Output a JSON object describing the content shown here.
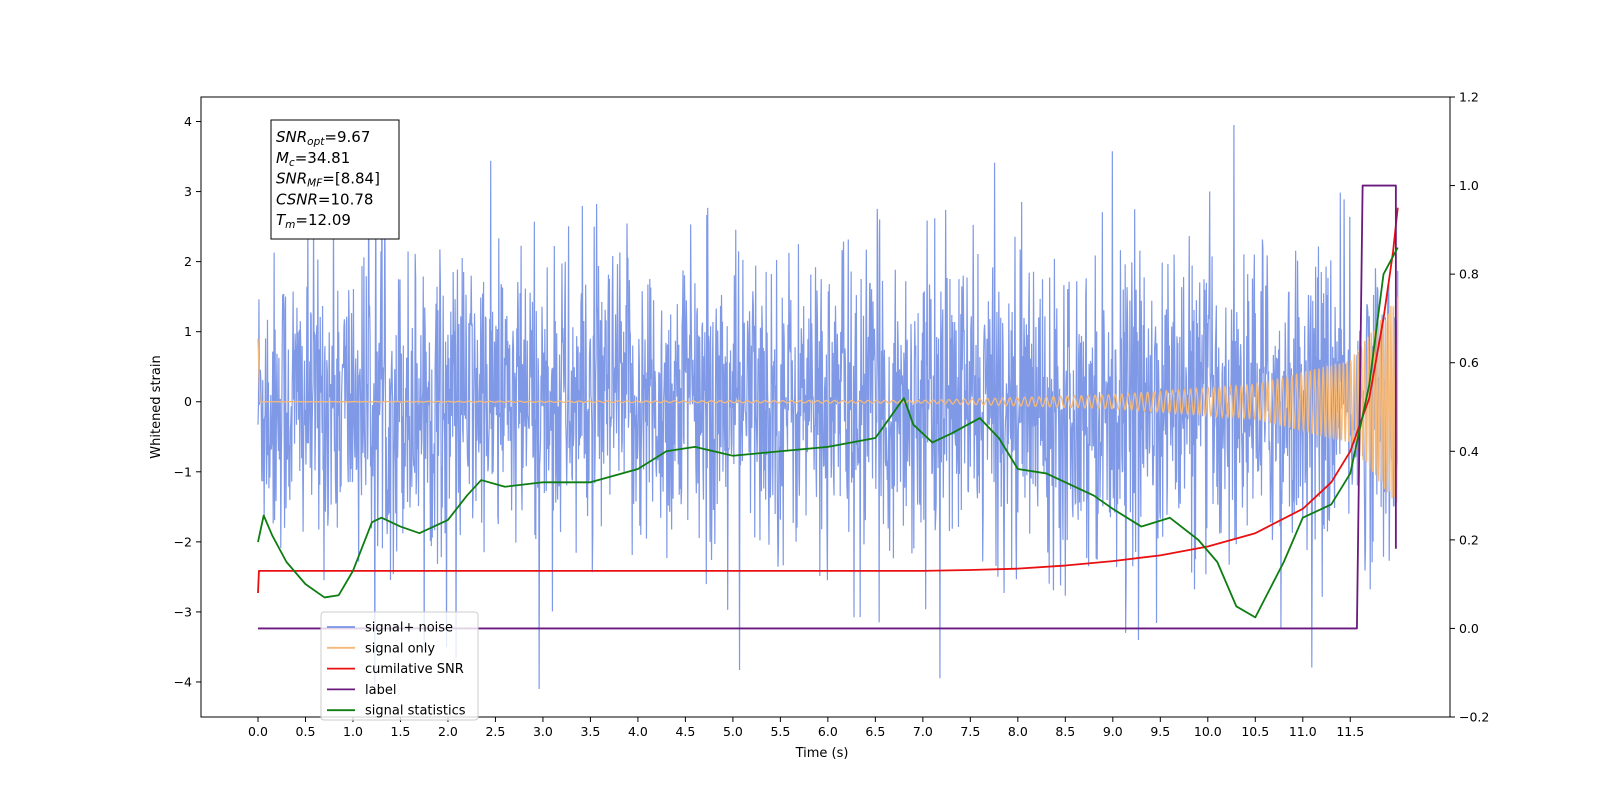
{
  "chart_data": {
    "type": "line",
    "xlabel": "Time (s)",
    "ylabel": "Whitened strain",
    "xlim": [
      -0.6,
      12.55
    ],
    "ylim_left": [
      -4.5,
      4.35
    ],
    "ylim_right": [
      -0.2,
      1.2
    ],
    "x_ticks": [
      0.0,
      0.5,
      1.0,
      1.5,
      2.0,
      2.5,
      3.0,
      3.5,
      4.0,
      4.5,
      5.0,
      5.5,
      6.0,
      6.5,
      7.0,
      7.5,
      8.0,
      8.5,
      9.0,
      9.5,
      10.0,
      10.5,
      11.0,
      11.5
    ],
    "x_tick_labels": [
      "0.0",
      "0.5",
      "1.0",
      "1.5",
      "2.0",
      "2.5",
      "3.0",
      "3.5",
      "4.0",
      "4.5",
      "5.0",
      "5.5",
      "6.0",
      "6.5",
      "7.0",
      "7.5",
      "8.0",
      "8.5",
      "9.0",
      "9.5",
      "10.0",
      "10.5",
      "11.0",
      "11.5"
    ],
    "y_ticks_left": [
      -4,
      -3,
      -2,
      -1,
      0,
      1,
      2,
      3,
      4
    ],
    "y_tick_labels_left": [
      "−4",
      "−3",
      "−2",
      "−1",
      "0",
      "1",
      "2",
      "3",
      "4"
    ],
    "y_ticks_right": [
      -0.2,
      0.0,
      0.2,
      0.4,
      0.6,
      0.8,
      1.0,
      1.2
    ],
    "y_tick_labels_right": [
      "−0.2",
      "0.0",
      "0.2",
      "0.4",
      "0.6",
      "0.8",
      "1.0",
      "1.2"
    ],
    "grid": false,
    "legend_position": "bottom-left",
    "annotation": {
      "lines": [
        {
          "sym": "SNR",
          "sub": "opt",
          "value": "=9.67"
        },
        {
          "sym": "M",
          "sub": "c",
          "value": "=34.81"
        },
        {
          "sym": "SNR",
          "sub": "MF",
          "value": "=[8.84]"
        },
        {
          "sym": "CSNR",
          "sub": "",
          "value": "=10.78"
        },
        {
          "sym": "T",
          "sub": "m",
          "value": "=12.09"
        }
      ]
    },
    "series": [
      {
        "name": "signal+ noise",
        "axis": "left",
        "color": "#7893e6",
        "kind": "noise",
        "t_start": 0.0,
        "t_end": 12.0,
        "typical_range": [
          -2.6,
          2.6
        ],
        "max": 3.95,
        "min": -4.1
      },
      {
        "name": "signal only",
        "axis": "left",
        "color": "#f5b97a",
        "kind": "chirp",
        "t_start": 0.0,
        "t_end": 12.0,
        "amplitude_points": [
          [
            0.0,
            0.0
          ],
          [
            7.0,
            0.02
          ],
          [
            9.0,
            0.1
          ],
          [
            10.5,
            0.25
          ],
          [
            11.5,
            0.6
          ],
          [
            12.0,
            1.5
          ]
        ]
      },
      {
        "name": "cumilative SNR",
        "axis": "right",
        "color": "#e81010",
        "points": [
          [
            0.0,
            0.08
          ],
          [
            0.01,
            0.13
          ],
          [
            1.0,
            0.13
          ],
          [
            3.0,
            0.13
          ],
          [
            5.0,
            0.13
          ],
          [
            7.0,
            0.13
          ],
          [
            7.5,
            0.132
          ],
          [
            8.0,
            0.135
          ],
          [
            8.5,
            0.142
          ],
          [
            9.0,
            0.152
          ],
          [
            9.5,
            0.165
          ],
          [
            10.0,
            0.185
          ],
          [
            10.5,
            0.215
          ],
          [
            11.0,
            0.27
          ],
          [
            11.3,
            0.33
          ],
          [
            11.5,
            0.4
          ],
          [
            11.7,
            0.52
          ],
          [
            11.85,
            0.7
          ],
          [
            11.95,
            0.85
          ],
          [
            12.0,
            0.95
          ]
        ]
      },
      {
        "name": "label",
        "axis": "right",
        "color": "#6a1a7f",
        "points": [
          [
            0.0,
            0.0
          ],
          [
            11.57,
            0.0
          ],
          [
            11.63,
            1.0
          ],
          [
            11.98,
            1.0
          ],
          [
            11.98,
            0.18
          ]
        ]
      },
      {
        "name": "signal statistics",
        "axis": "right",
        "color": "#0e7d12",
        "points": [
          [
            0.0,
            0.195
          ],
          [
            0.06,
            0.255
          ],
          [
            0.15,
            0.21
          ],
          [
            0.3,
            0.15
          ],
          [
            0.5,
            0.1
          ],
          [
            0.7,
            0.07
          ],
          [
            0.85,
            0.075
          ],
          [
            1.0,
            0.13
          ],
          [
            1.2,
            0.24
          ],
          [
            1.3,
            0.25
          ],
          [
            1.5,
            0.23
          ],
          [
            1.7,
            0.215
          ],
          [
            2.0,
            0.245
          ],
          [
            2.2,
            0.3
          ],
          [
            2.35,
            0.335
          ],
          [
            2.6,
            0.32
          ],
          [
            3.0,
            0.33
          ],
          [
            3.5,
            0.33
          ],
          [
            4.0,
            0.36
          ],
          [
            4.3,
            0.4
          ],
          [
            4.6,
            0.41
          ],
          [
            5.0,
            0.39
          ],
          [
            5.5,
            0.4
          ],
          [
            6.0,
            0.41
          ],
          [
            6.5,
            0.43
          ],
          [
            6.8,
            0.52
          ],
          [
            6.9,
            0.46
          ],
          [
            7.1,
            0.42
          ],
          [
            7.3,
            0.44
          ],
          [
            7.6,
            0.475
          ],
          [
            7.8,
            0.43
          ],
          [
            8.0,
            0.36
          ],
          [
            8.3,
            0.35
          ],
          [
            8.8,
            0.3
          ],
          [
            9.0,
            0.27
          ],
          [
            9.3,
            0.23
          ],
          [
            9.6,
            0.25
          ],
          [
            9.9,
            0.2
          ],
          [
            10.1,
            0.15
          ],
          [
            10.3,
            0.05
          ],
          [
            10.5,
            0.025
          ],
          [
            10.8,
            0.15
          ],
          [
            11.0,
            0.25
          ],
          [
            11.3,
            0.28
          ],
          [
            11.5,
            0.35
          ],
          [
            11.7,
            0.55
          ],
          [
            11.85,
            0.8
          ],
          [
            12.0,
            0.86
          ]
        ]
      }
    ],
    "legend": [
      {
        "label": "signal+ noise",
        "color": "#7893e6"
      },
      {
        "label": "signal only",
        "color": "#f5b97a"
      },
      {
        "label": "cumilative SNR",
        "color": "#e81010"
      },
      {
        "label": "label",
        "color": "#6a1a7f"
      },
      {
        "label": "signal statistics",
        "color": "#0e7d12"
      }
    ]
  }
}
